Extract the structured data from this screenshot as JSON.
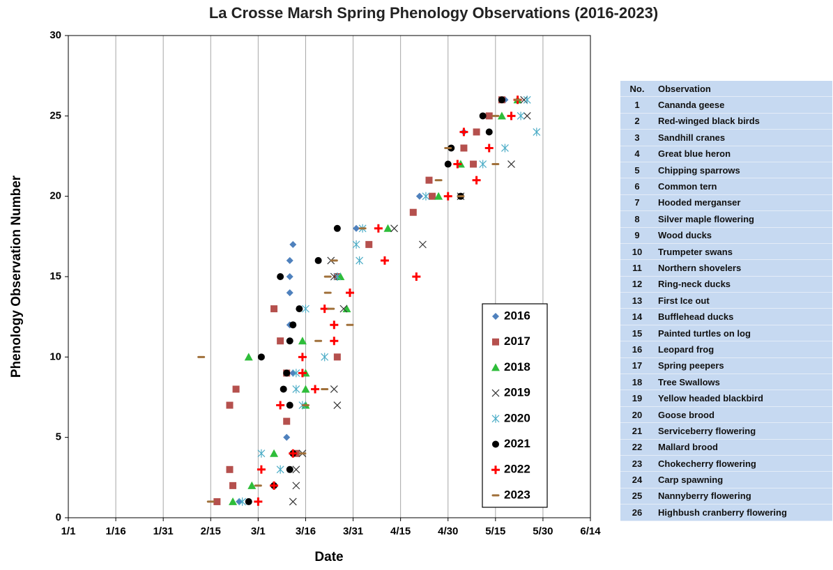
{
  "chart_data": {
    "type": "scatter",
    "title": "La Crosse Marsh Spring Phenology Observations (2016-2023)",
    "x_label": "Date",
    "y_label": "Phenology Observation Number",
    "xlim": [
      1,
      166
    ],
    "xticks": [
      {
        "value": 1,
        "label": "1/1"
      },
      {
        "value": 16,
        "label": "1/16"
      },
      {
        "value": 31,
        "label": "1/31"
      },
      {
        "value": 46,
        "label": "2/15"
      },
      {
        "value": 61,
        "label": "3/1"
      },
      {
        "value": 76,
        "label": "3/16"
      },
      {
        "value": 91,
        "label": "3/31"
      },
      {
        "value": 106,
        "label": "4/15"
      },
      {
        "value": 121,
        "label": "4/30"
      },
      {
        "value": 136,
        "label": "5/15"
      },
      {
        "value": 151,
        "label": "5/30"
      },
      {
        "value": 166,
        "label": "6/14"
      }
    ],
    "ylim": [
      0,
      30
    ],
    "yticks": [
      0,
      5,
      10,
      15,
      20,
      25,
      30
    ],
    "grid": "x",
    "series": [
      {
        "name": "2016",
        "color": "#4f81bd",
        "marker": "diamond",
        "x": [
          55,
          66,
          72,
          70,
          72,
          71,
          71,
          71,
          71,
          72,
          92,
          112,
          126,
          139
        ],
        "values": [
          1,
          2,
          4,
          5,
          9,
          12,
          14,
          15,
          16,
          17,
          18,
          20,
          24,
          26
        ]
      },
      {
        "name": "2017",
        "color": "#b5504d",
        "marker": "square",
        "x": [
          48,
          53,
          52,
          73,
          70,
          52,
          54,
          70,
          86,
          68,
          66,
          86,
          96,
          110,
          116,
          115,
          129,
          126,
          130,
          134,
          138
        ],
        "values": [
          1,
          2,
          3,
          4,
          6,
          7,
          8,
          9,
          10,
          11,
          13,
          15,
          17,
          19,
          20,
          21,
          22,
          23,
          24,
          25,
          26
        ]
      },
      {
        "name": "2018",
        "color": "#2ebd3a",
        "marker": "triangle",
        "x": [
          53,
          59,
          66,
          76,
          76,
          76,
          58,
          75,
          89,
          87,
          102,
          118,
          125,
          138,
          143
        ],
        "values": [
          1,
          2,
          4,
          7,
          8,
          9,
          10,
          11,
          13,
          15,
          18,
          20,
          22,
          25,
          26
        ]
      },
      {
        "name": "2019",
        "color": "#333333",
        "marker": "x",
        "x": [
          72,
          73,
          73,
          75,
          86,
          85,
          88,
          85,
          84,
          113,
          104,
          125,
          141,
          146,
          145
        ],
        "values": [
          1,
          2,
          3,
          4,
          7,
          8,
          13,
          15,
          16,
          17,
          18,
          20,
          22,
          25,
          26
        ]
      },
      {
        "name": "2020",
        "color": "#4bacc6",
        "marker": "asterisk",
        "x": [
          56,
          68,
          62,
          75,
          73,
          73,
          82,
          76,
          86,
          93,
          92,
          94,
          114,
          132,
          139,
          149,
          144,
          146
        ],
        "values": [
          1,
          3,
          4,
          7,
          8,
          9,
          10,
          13,
          15,
          16,
          17,
          18,
          20,
          22,
          23,
          24,
          25,
          26
        ]
      },
      {
        "name": "2021",
        "color": "#000000",
        "marker": "circle",
        "x": [
          58,
          66,
          71,
          72,
          71,
          69,
          70,
          62,
          71,
          72,
          74,
          68,
          80,
          86,
          125,
          121,
          122,
          134,
          132,
          138
        ],
        "values": [
          1,
          2,
          3,
          4,
          7,
          8,
          9,
          10,
          11,
          12,
          13,
          15,
          16,
          18,
          20,
          22,
          23,
          24,
          25,
          26
        ]
      },
      {
        "name": "2022",
        "color": "#ff0000",
        "marker": "plus",
        "x": [
          61,
          66,
          62,
          72,
          68,
          79,
          75,
          75,
          85,
          85,
          82,
          90,
          111,
          101,
          99,
          121,
          130,
          124,
          134,
          126,
          141,
          143
        ],
        "values": [
          1,
          2,
          3,
          4,
          7,
          8,
          9,
          10,
          11,
          12,
          13,
          14,
          15,
          16,
          18,
          20,
          21,
          22,
          23,
          24,
          25,
          26
        ]
      },
      {
        "name": "2023",
        "color": "#a0703a",
        "marker": "dash",
        "x": [
          46,
          61,
          75,
          76,
          82,
          43,
          80,
          90,
          84,
          83,
          83,
          85,
          94,
          125,
          118,
          136,
          121,
          136,
          143
        ],
        "values": [
          1,
          2,
          4,
          7,
          8,
          10,
          11,
          12,
          13,
          14,
          15,
          16,
          18,
          20,
          21,
          22,
          23,
          25,
          26
        ]
      }
    ]
  },
  "table": {
    "header": [
      "No.",
      "Observation"
    ],
    "rows": [
      [
        1,
        "Cananda geese"
      ],
      [
        2,
        "Red-winged black birds"
      ],
      [
        3,
        "Sandhill cranes"
      ],
      [
        4,
        "Great blue heron"
      ],
      [
        5,
        "Chipping sparrows"
      ],
      [
        6,
        "Common tern"
      ],
      [
        7,
        "Hooded merganser"
      ],
      [
        8,
        "Silver maple flowering"
      ],
      [
        9,
        "Wood ducks"
      ],
      [
        10,
        "Trumpeter swans"
      ],
      [
        11,
        "Northern shovelers"
      ],
      [
        12,
        "Ring-neck ducks"
      ],
      [
        13,
        "First Ice out"
      ],
      [
        14,
        "Bufflehead ducks"
      ],
      [
        15,
        "Painted turtles on log"
      ],
      [
        16,
        "Leopard frog"
      ],
      [
        17,
        "Spring peepers"
      ],
      [
        18,
        "Tree Swallows"
      ],
      [
        19,
        "Yellow headed blackbird"
      ],
      [
        20,
        "Goose brood"
      ],
      [
        21,
        "Serviceberry flowering"
      ],
      [
        22,
        "Mallard brood"
      ],
      [
        23,
        "Chokecherry flowering"
      ],
      [
        24,
        "Carp spawning"
      ],
      [
        25,
        "Nannyberry flowering"
      ],
      [
        26,
        "Highbush cranberry flowering"
      ]
    ]
  }
}
